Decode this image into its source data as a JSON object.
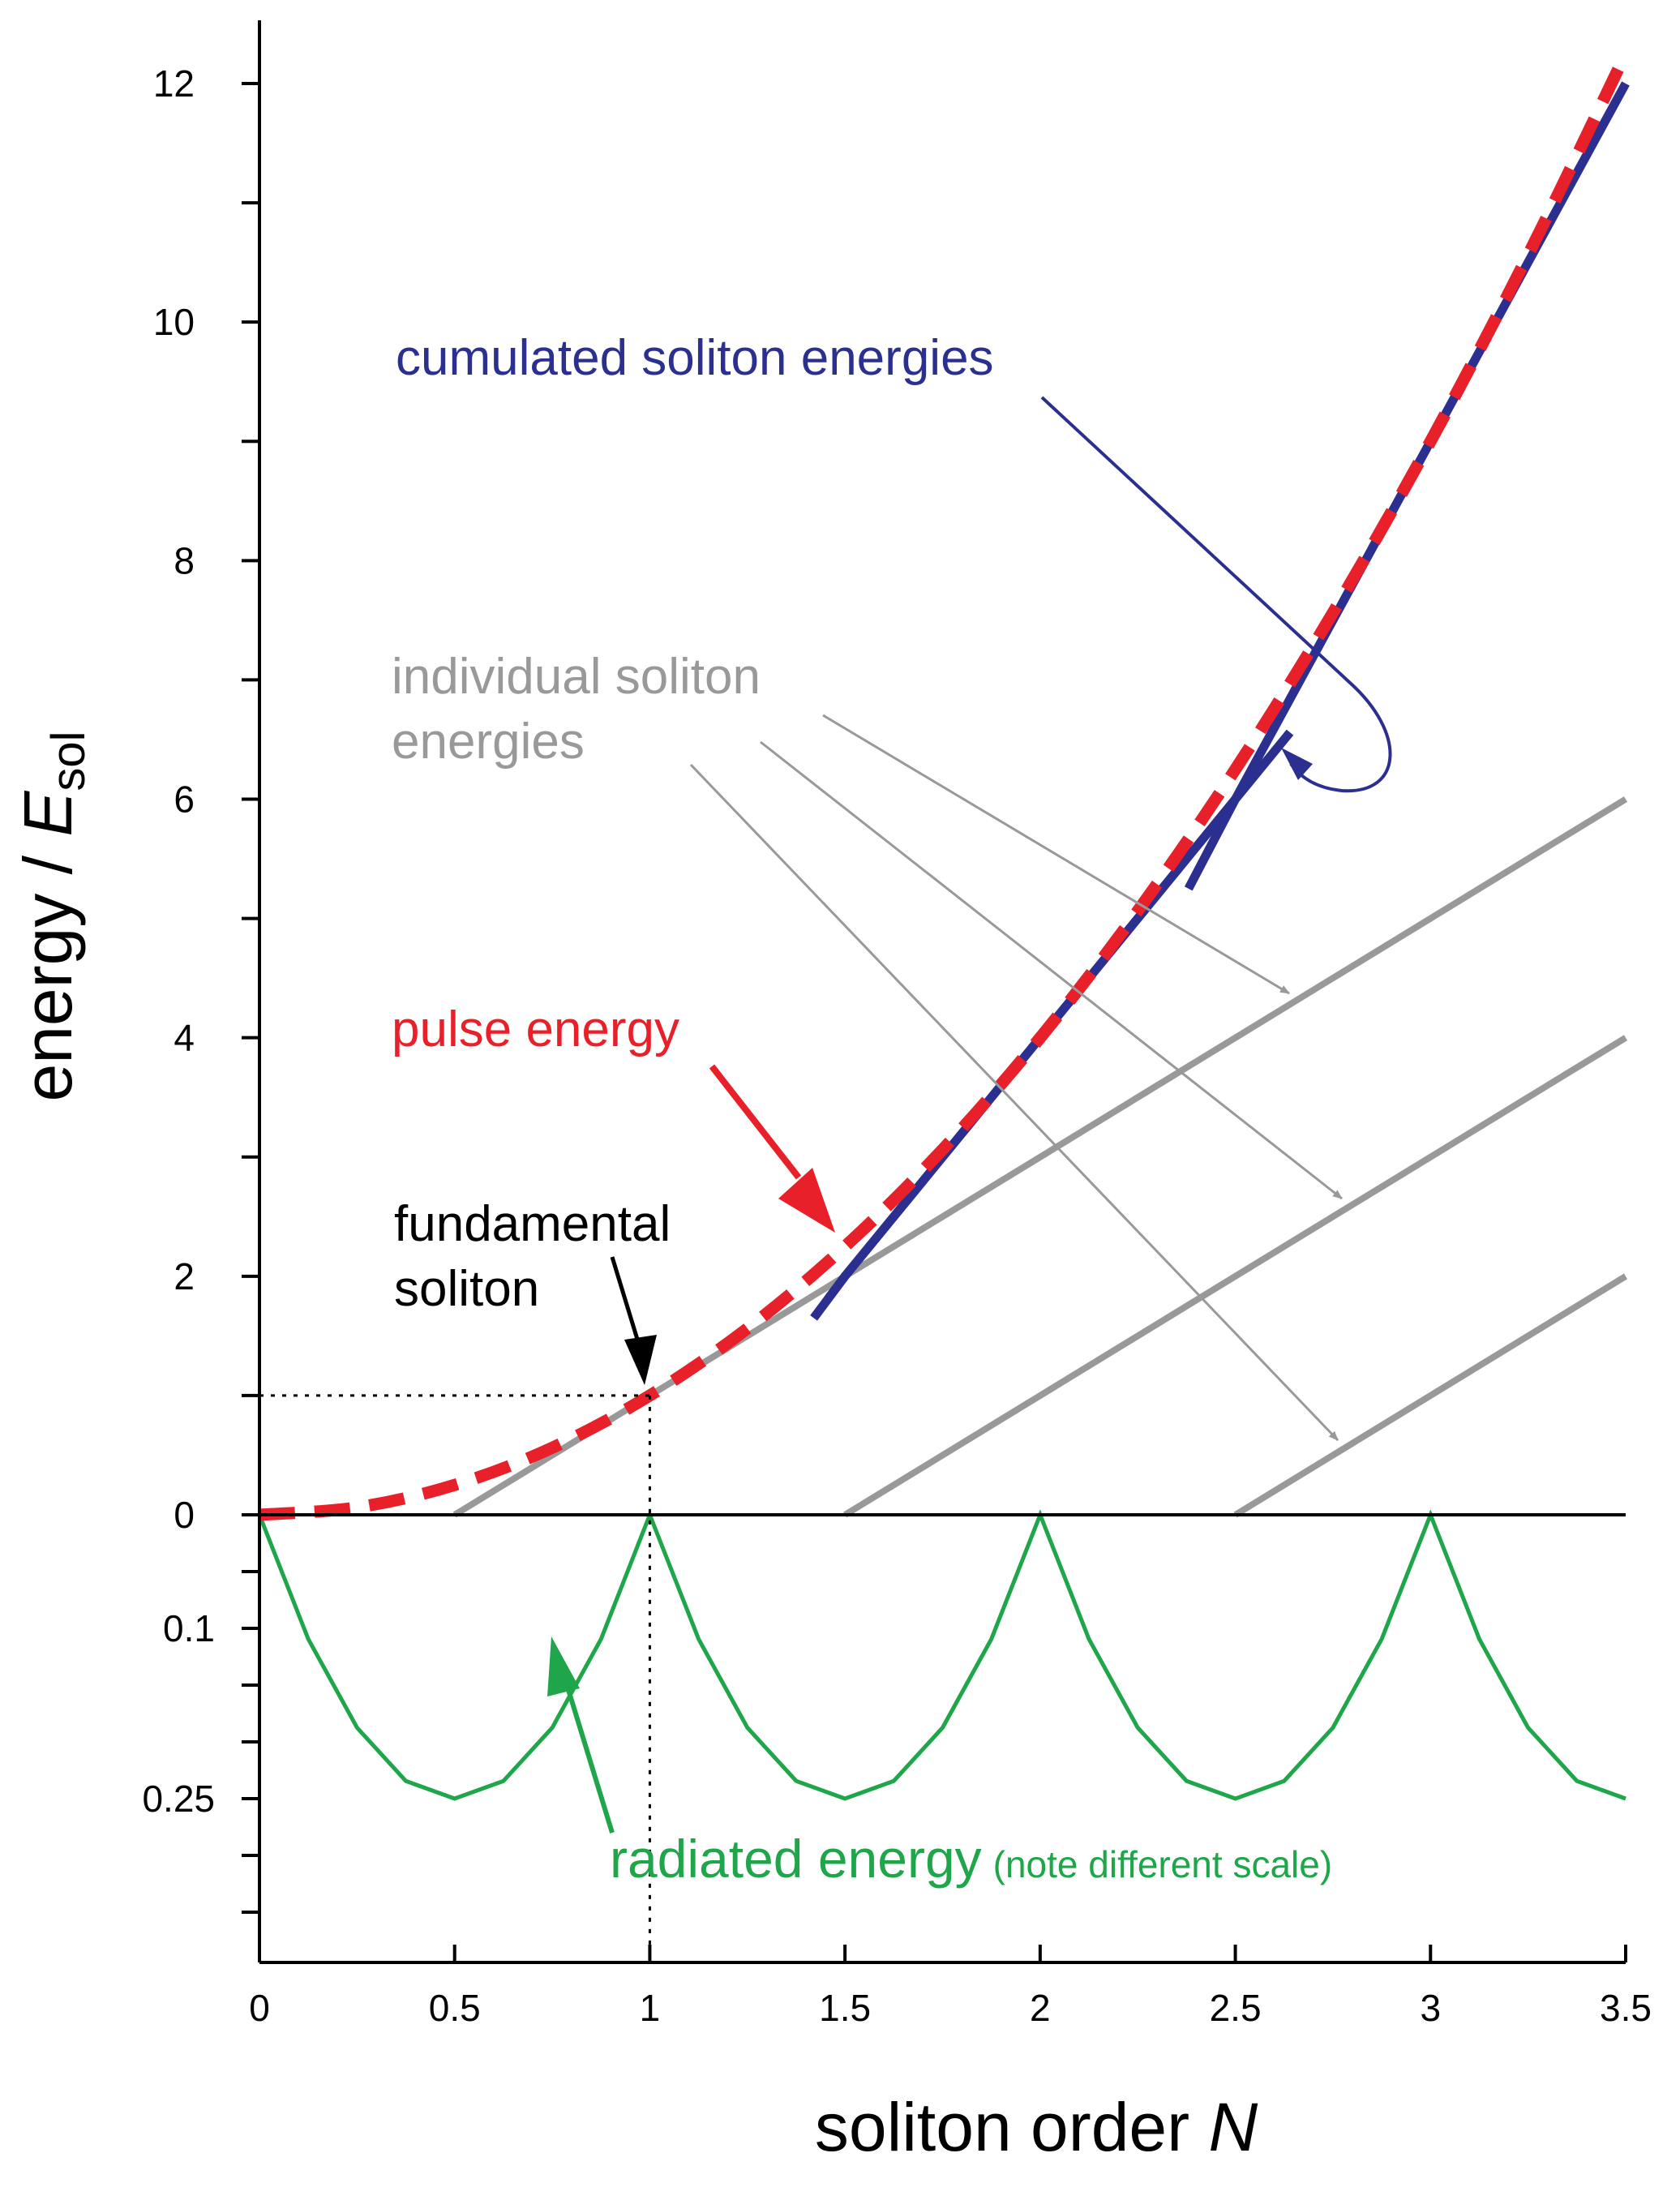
{
  "chart_data": {
    "type": "line",
    "xlabel_text": "soliton order ",
    "xlabel_var": "N",
    "ylabel_text": "energy / ",
    "ylabel_var": "E",
    "ylabel_sub": "sol",
    "xlim": [
      0,
      3.5
    ],
    "ylim_upper": [
      0,
      12
    ],
    "ylim_lower": [
      0,
      0.35
    ],
    "x_ticks": [
      {
        "value": 0,
        "label": "0"
      },
      {
        "value": 0.5,
        "label": "0.5"
      },
      {
        "value": 1,
        "label": "1"
      },
      {
        "value": 1.5,
        "label": "1.5"
      },
      {
        "value": 2,
        "label": "2"
      },
      {
        "value": 2.5,
        "label": "2.5"
      },
      {
        "value": 3,
        "label": "3"
      },
      {
        "value": 3.5,
        "label": "3.5"
      }
    ],
    "y_ticks_upper": [
      {
        "value": 0,
        "label": "0"
      },
      {
        "value": 2,
        "label": "2"
      },
      {
        "value": 4,
        "label": "4"
      },
      {
        "value": 6,
        "label": "6"
      },
      {
        "value": 8,
        "label": "8"
      },
      {
        "value": 10,
        "label": "10"
      },
      {
        "value": 12,
        "label": "12"
      }
    ],
    "y_ticks_lower": [
      {
        "value": 0.1,
        "label": "0.1"
      },
      {
        "value": 0.25,
        "label": "0.25"
      }
    ],
    "series": [
      {
        "key": "pulse",
        "name": "pulse energy",
        "color": "#e8202a",
        "style": "dashed",
        "x": [
          0,
          0.25,
          0.5,
          0.75,
          1,
          1.25,
          1.5,
          1.75,
          2,
          2.25,
          2.5,
          2.75,
          3,
          3.25,
          3.5
        ],
        "y": [
          0,
          0.0625,
          0.25,
          0.5625,
          1,
          1.5625,
          2.25,
          3.0625,
          4,
          5.0625,
          6.25,
          7.5625,
          9,
          10.5625,
          12.25
        ]
      },
      {
        "key": "cumulated",
        "name": "cumulated soliton energies",
        "color": "#2b2f8f",
        "style": "solid",
        "segments": [
          {
            "x": [
              1.42,
              1.5,
              1.75,
              2,
              2.25,
              2.5,
              2.64
            ],
            "y": [
              1.65,
              2.0,
              3.0,
              4.0,
              5.0,
              6.0,
              6.56
            ]
          },
          {
            "x": [
              2.38,
              2.5,
              2.75,
              3,
              3.25,
              3.5
            ],
            "y": [
              5.25,
              6.0,
              7.5,
              9.0,
              10.5,
              12.0
            ]
          }
        ]
      },
      {
        "key": "individual",
        "name": "individual soliton energies",
        "color": "#999999",
        "style": "solid",
        "segments": [
          {
            "x": [
              0.5,
              0.75,
              1,
              1.25,
              1.5,
              1.75,
              2,
              2.25,
              2.5,
              2.75,
              3,
              3.25,
              3.5
            ],
            "y": [
              0,
              0.5,
              1.0,
              1.5,
              2.0,
              2.5,
              3.0,
              3.5,
              4.0,
              4.5,
              5.0,
              5.5,
              6.0
            ]
          },
          {
            "x": [
              1.5,
              1.75,
              2,
              2.25,
              2.5,
              2.75,
              3,
              3.25,
              3.5
            ],
            "y": [
              0,
              0.5,
              1.0,
              1.5,
              2.0,
              2.5,
              3.0,
              3.5,
              4.0
            ]
          },
          {
            "x": [
              2.5,
              2.75,
              3,
              3.25,
              3.5
            ],
            "y": [
              0,
              0.5,
              1.0,
              1.5,
              2.0
            ]
          }
        ]
      },
      {
        "key": "radiated",
        "name": "radiated energy",
        "color": "#1fa64a",
        "style": "solid",
        "axis": "lower",
        "x": [
          0,
          0.125,
          0.25,
          0.375,
          0.5,
          0.625,
          0.75,
          0.875,
          1,
          1.125,
          1.25,
          1.375,
          1.5,
          1.625,
          1.75,
          1.875,
          2,
          2.125,
          2.25,
          2.375,
          2.5,
          2.625,
          2.75,
          2.875,
          3,
          3.125,
          3.25,
          3.375,
          3.5
        ],
        "y": [
          0,
          0.1094,
          0.1875,
          0.2344,
          0.25,
          0.2344,
          0.1875,
          0.1094,
          0,
          0.1094,
          0.1875,
          0.2344,
          0.25,
          0.2344,
          0.1875,
          0.1094,
          0,
          0.1094,
          0.1875,
          0.2344,
          0.25,
          0.2344,
          0.1875,
          0.1094,
          0,
          0.1094,
          0.1875,
          0.2344,
          0.25
        ]
      }
    ],
    "annotations": {
      "cumulated": "cumulated soliton energies",
      "individual_line1": "individual soliton",
      "individual_line2": "energies",
      "pulse": "pulse energy",
      "fundamental_line1": "fundamental",
      "fundamental_line2": "soliton",
      "radiated": "radiated energy",
      "radiated_note": "(note different scale)"
    },
    "colors": {
      "pulse": "#e8202a",
      "cumulated": "#2b2f8f",
      "individual": "#999999",
      "radiated": "#1fa64a",
      "fundamental": "#000000"
    },
    "grid": false,
    "legend": "none"
  }
}
